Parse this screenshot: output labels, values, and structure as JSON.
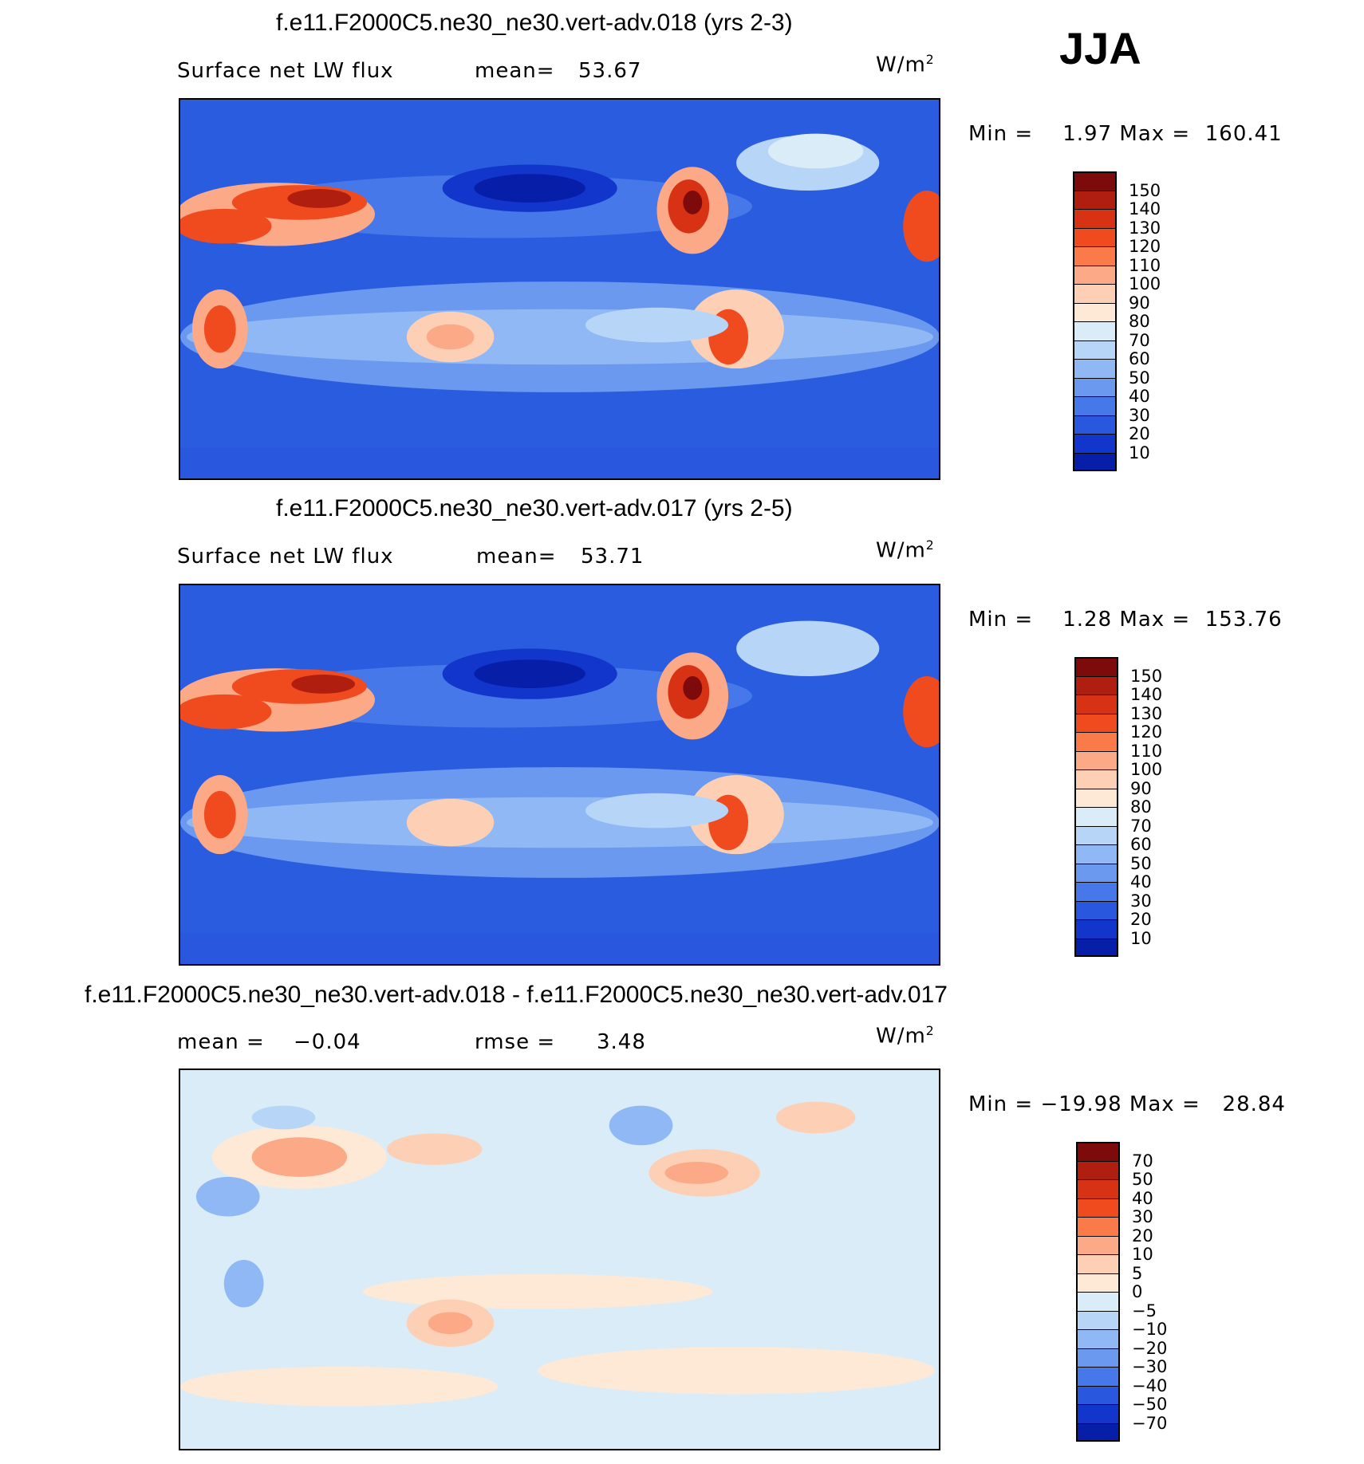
{
  "season": "JJA",
  "panels": [
    {
      "title": "f.e11.F2000C5.ne30_ne30.vert-adv.018 (yrs 2-3)",
      "left_label": "Surface net LW flux",
      "stat_label": "mean=",
      "stat_value": "53.67",
      "units": "W/m",
      "units_sup": "2",
      "minmax": "Min =    1.97 Max =  160.41",
      "colorbar_labels": [
        "150",
        "140",
        "130",
        "120",
        "110",
        "100",
        "90",
        "80",
        "70",
        "60",
        "50",
        "40",
        "30",
        "20",
        "10"
      ],
      "colorbar_colors": [
        "#7e0b0b",
        "#b01e10",
        "#d83214",
        "#f04b1f",
        "#fb7a4a",
        "#fca987",
        "#fdd0b5",
        "#fde9d6",
        "#dbecf9",
        "#b7d5f7",
        "#8fb8f4",
        "#6a99ef",
        "#4678ea",
        "#2958de",
        "#1236cb",
        "#061ea8"
      ]
    },
    {
      "title": "f.e11.F2000C5.ne30_ne30.vert-adv.017 (yrs 2-5)",
      "left_label": "Surface net LW flux",
      "stat_label": "mean=",
      "stat_value": "53.71",
      "units": "W/m",
      "units_sup": "2",
      "minmax": "Min =    1.28 Max =  153.76",
      "colorbar_labels": [
        "150",
        "140",
        "130",
        "120",
        "110",
        "100",
        "90",
        "80",
        "70",
        "60",
        "50",
        "40",
        "30",
        "20",
        "10"
      ],
      "colorbar_colors": [
        "#7e0b0b",
        "#b01e10",
        "#d83214",
        "#f04b1f",
        "#fb7a4a",
        "#fca987",
        "#fdd0b5",
        "#fde9d6",
        "#dbecf9",
        "#b7d5f7",
        "#8fb8f4",
        "#6a99ef",
        "#4678ea",
        "#2958de",
        "#1236cb",
        "#061ea8"
      ]
    },
    {
      "title": "f.e11.F2000C5.ne30_ne30.vert-adv.018 - f.e11.F2000C5.ne30_ne30.vert-adv.017",
      "left_label": "mean =",
      "stat_label": "rmse =",
      "left_value": "−0.04",
      "stat_value": "3.48",
      "units": "W/m",
      "units_sup": "2",
      "minmax": "Min = −19.98 Max =   28.84",
      "colorbar_labels": [
        "70",
        "50",
        "40",
        "30",
        "20",
        "10",
        "5",
        "0",
        "−5",
        "−10",
        "−20",
        "−30",
        "−40",
        "−50",
        "−70"
      ],
      "colorbar_colors": [
        "#7e0b0b",
        "#b01e10",
        "#d83214",
        "#f04b1f",
        "#fb7a4a",
        "#fca987",
        "#fdd0b5",
        "#fde9d6",
        "#dbecf9",
        "#b7d5f7",
        "#8fb8f4",
        "#6a99ef",
        "#4678ea",
        "#2958de",
        "#1236cb",
        "#061ea8"
      ]
    }
  ],
  "chart_data": [
    {
      "type": "heatmap",
      "title": "f.e11.F2000C5.ne30_ne30.vert-adv.018 (yrs 2-3)",
      "variable": "Surface net LW flux",
      "season": "JJA",
      "units": "W/m2",
      "mean": 53.67,
      "min": 1.97,
      "max": 160.41,
      "levels": [
        10,
        20,
        30,
        40,
        50,
        60,
        70,
        80,
        90,
        100,
        110,
        120,
        130,
        140,
        150
      ]
    },
    {
      "type": "heatmap",
      "title": "f.e11.F2000C5.ne30_ne30.vert-adv.017 (yrs 2-5)",
      "variable": "Surface net LW flux",
      "season": "JJA",
      "units": "W/m2",
      "mean": 53.71,
      "min": 1.28,
      "max": 153.76,
      "levels": [
        10,
        20,
        30,
        40,
        50,
        60,
        70,
        80,
        90,
        100,
        110,
        120,
        130,
        140,
        150
      ]
    },
    {
      "type": "heatmap",
      "title": "f.e11.F2000C5.ne30_ne30.vert-adv.018 - f.e11.F2000C5.ne30_ne30.vert-adv.017",
      "season": "JJA",
      "units": "W/m2",
      "mean": -0.04,
      "rmse": 3.48,
      "min": -19.98,
      "max": 28.84,
      "levels": [
        -70,
        -50,
        -40,
        -30,
        -20,
        -10,
        -5,
        0,
        5,
        10,
        20,
        30,
        40,
        50,
        70
      ]
    }
  ]
}
